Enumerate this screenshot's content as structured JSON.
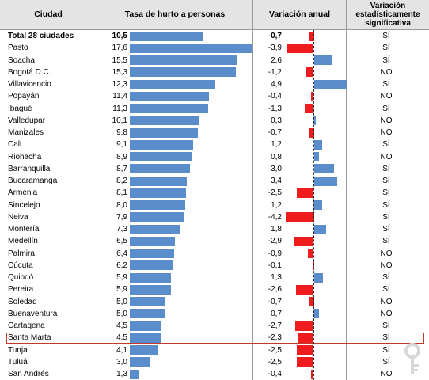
{
  "headers": {
    "city": "Ciudad",
    "rate": "Tasa de hurto a personas",
    "variation": "Variación anual",
    "significance": "Variación estadísticamente significativa"
  },
  "chart_data": {
    "type": "table",
    "columns": [
      "Ciudad",
      "Tasa de hurto a personas",
      "Variación anual",
      "Variación estadísticamente significativa"
    ],
    "rows": [
      {
        "city": "Total 28 ciudades",
        "rate": "10,5",
        "variation": "-0,7",
        "sig": "SÍ",
        "rate_value": 10.5,
        "var_value": -0.7
      },
      {
        "city": "Pasto",
        "rate": "17,6",
        "variation": "-3,9",
        "sig": "SÍ",
        "rate_value": 17.6,
        "var_value": -3.9
      },
      {
        "city": "Soacha",
        "rate": "15,5",
        "variation": "2,6",
        "sig": "SÍ",
        "rate_value": 15.5,
        "var_value": 2.6
      },
      {
        "city": "Bogotá D.C.",
        "rate": "15,3",
        "variation": "-1,2",
        "sig": "NO",
        "rate_value": 15.3,
        "var_value": -1.2
      },
      {
        "city": "Villavicencio",
        "rate": "12,3",
        "variation": "4,9",
        "sig": "SÍ",
        "rate_value": 12.3,
        "var_value": 4.9
      },
      {
        "city": "Popayán",
        "rate": "11,4",
        "variation": "-0,4",
        "sig": "NO",
        "rate_value": 11.4,
        "var_value": -0.4
      },
      {
        "city": "Ibagué",
        "rate": "11,3",
        "variation": "-1,3",
        "sig": "SÍ",
        "rate_value": 11.3,
        "var_value": -1.3
      },
      {
        "city": "Valledupar",
        "rate": "10,1",
        "variation": "0,3",
        "sig": "NO",
        "rate_value": 10.1,
        "var_value": 0.3
      },
      {
        "city": "Manizales",
        "rate": "9,8",
        "variation": "-0,7",
        "sig": "NO",
        "rate_value": 9.8,
        "var_value": -0.7
      },
      {
        "city": "Cali",
        "rate": "9,1",
        "variation": "1,2",
        "sig": "SÍ",
        "rate_value": 9.1,
        "var_value": 1.2
      },
      {
        "city": "Riohacha",
        "rate": "8,9",
        "variation": "0,8",
        "sig": "NO",
        "rate_value": 8.9,
        "var_value": 0.8
      },
      {
        "city": "Barranquilla",
        "rate": "8,7",
        "variation": "3,0",
        "sig": "SÍ",
        "rate_value": 8.7,
        "var_value": 3.0
      },
      {
        "city": "Bucaramanga",
        "rate": "8,2",
        "variation": "3,4",
        "sig": "SÍ",
        "rate_value": 8.2,
        "var_value": 3.4
      },
      {
        "city": "Armenia",
        "rate": "8,1",
        "variation": "-2,5",
        "sig": "SÍ",
        "rate_value": 8.1,
        "var_value": -2.5
      },
      {
        "city": "Sincelejo",
        "rate": "8,0",
        "variation": "1,2",
        "sig": "SÍ",
        "rate_value": 8.0,
        "var_value": 1.2
      },
      {
        "city": "Neiva",
        "rate": "7,9",
        "variation": "-4,2",
        "sig": "SÍ",
        "rate_value": 7.9,
        "var_value": -4.2
      },
      {
        "city": "Montería",
        "rate": "7,3",
        "variation": "1,8",
        "sig": "SÍ",
        "rate_value": 7.3,
        "var_value": 1.8
      },
      {
        "city": "Medellín",
        "rate": "6,5",
        "variation": "-2,9",
        "sig": "SÍ",
        "rate_value": 6.5,
        "var_value": -2.9
      },
      {
        "city": "Palmira",
        "rate": "6,4",
        "variation": "-0,9",
        "sig": "NO",
        "rate_value": 6.4,
        "var_value": -0.9
      },
      {
        "city": "Cúcuta",
        "rate": "6,2",
        "variation": "-0,1",
        "sig": "NO",
        "rate_value": 6.2,
        "var_value": -0.1
      },
      {
        "city": "Quibdó",
        "rate": "5,9",
        "variation": "1,3",
        "sig": "SÍ",
        "rate_value": 5.9,
        "var_value": 1.3
      },
      {
        "city": "Pereira",
        "rate": "5,9",
        "variation": "-2,6",
        "sig": "SÍ",
        "rate_value": 5.9,
        "var_value": -2.6
      },
      {
        "city": "Soledad",
        "rate": "5,0",
        "variation": "-0,7",
        "sig": "NO",
        "rate_value": 5.0,
        "var_value": -0.7
      },
      {
        "city": "Buenaventura",
        "rate": "5,0",
        "variation": "0,7",
        "sig": "NO",
        "rate_value": 5.0,
        "var_value": 0.7
      },
      {
        "city": "Cartagena",
        "rate": "4,5",
        "variation": "-2,7",
        "sig": "SÍ",
        "rate_value": 4.5,
        "var_value": -2.7
      },
      {
        "city": "Santa Marta",
        "rate": "4,5",
        "variation": "-2,3",
        "sig": "SÍ",
        "rate_value": 4.5,
        "var_value": -2.3,
        "highlighted": true
      },
      {
        "city": "Tunja",
        "rate": "4,1",
        "variation": "-2,5",
        "sig": "SÍ",
        "rate_value": 4.1,
        "var_value": -2.5
      },
      {
        "city": "Tuluá",
        "rate": "3,0",
        "variation": "-2,5",
        "sig": "SÍ",
        "rate_value": 3.0,
        "var_value": -2.5
      },
      {
        "city": "San Andrés",
        "rate": "1,3",
        "variation": "-0,4",
        "sig": "NO",
        "rate_value": 1.3,
        "var_value": -0.4
      }
    ],
    "rate_range": [
      0,
      17.6
    ],
    "variation_range": [
      -4.2,
      4.9
    ]
  },
  "colors": {
    "rate_bar": "#5b8ccc",
    "positive_bar": "#5b8ccc",
    "negative_bar": "#ee1c1c",
    "header_bg": "#e4e4e4",
    "highlight_border": "#c0392b"
  }
}
